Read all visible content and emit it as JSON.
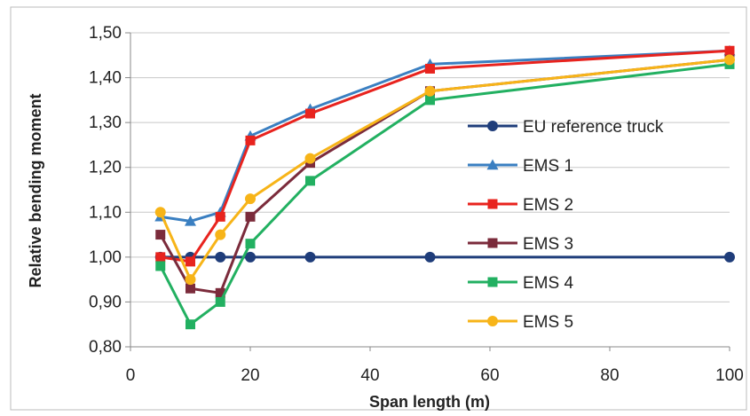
{
  "chart_data": {
    "type": "line",
    "xlabel": "Span length (m)",
    "ylabel": "Relative bending moment",
    "xlim": [
      0,
      100
    ],
    "ylim": [
      0.8,
      1.5
    ],
    "xticks": [
      "0",
      "20",
      "40",
      "60",
      "80",
      "100"
    ],
    "yticks": [
      "0,80",
      "0,90",
      "1,00",
      "1,10",
      "1,20",
      "1,30",
      "1,40",
      "1,50"
    ],
    "grid": "horizontal",
    "legend_position": "right",
    "series": [
      {
        "name": "EU reference truck",
        "color": "#1f3d7a",
        "marker": "circle",
        "x": [
          5,
          10,
          15,
          20,
          30,
          50,
          100
        ],
        "y": [
          1.0,
          1.0,
          1.0,
          1.0,
          1.0,
          1.0,
          1.0
        ]
      },
      {
        "name": "EMS 1",
        "color": "#3a7fc1",
        "marker": "triangle",
        "x": [
          5,
          10,
          15,
          20,
          30,
          50,
          100
        ],
        "y": [
          1.09,
          1.08,
          1.1,
          1.27,
          1.33,
          1.43,
          1.46
        ]
      },
      {
        "name": "EMS 2",
        "color": "#e8231e",
        "marker": "square",
        "x": [
          5,
          10,
          15,
          20,
          30,
          50,
          100
        ],
        "y": [
          1.0,
          0.99,
          1.09,
          1.26,
          1.32,
          1.42,
          1.46
        ]
      },
      {
        "name": "EMS 3",
        "color": "#7b2b3b",
        "marker": "square",
        "x": [
          5,
          10,
          15,
          20,
          30,
          50,
          100
        ],
        "y": [
          1.05,
          0.93,
          0.92,
          1.09,
          1.21,
          1.37,
          1.44
        ]
      },
      {
        "name": "EMS 4",
        "color": "#22b061",
        "marker": "square",
        "x": [
          5,
          10,
          15,
          20,
          30,
          50,
          100
        ],
        "y": [
          0.98,
          0.85,
          0.9,
          1.03,
          1.17,
          1.35,
          1.43
        ]
      },
      {
        "name": "EMS 5",
        "color": "#f7b418",
        "marker": "circle",
        "x": [
          5,
          10,
          15,
          20,
          30,
          50,
          100
        ],
        "y": [
          1.1,
          0.95,
          1.05,
          1.13,
          1.22,
          1.37,
          1.44
        ]
      }
    ]
  }
}
